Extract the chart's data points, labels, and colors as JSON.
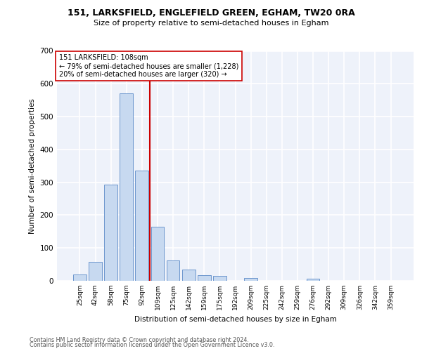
{
  "title1": "151, LARKSFIELD, ENGLEFIELD GREEN, EGHAM, TW20 0RA",
  "title2": "Size of property relative to semi-detached houses in Egham",
  "xlabel": "Distribution of semi-detached houses by size in Egham",
  "ylabel": "Number of semi-detached properties",
  "categories": [
    "25sqm",
    "42sqm",
    "58sqm",
    "75sqm",
    "92sqm",
    "109sqm",
    "125sqm",
    "142sqm",
    "159sqm",
    "175sqm",
    "192sqm",
    "209sqm",
    "225sqm",
    "242sqm",
    "259sqm",
    "276sqm",
    "292sqm",
    "309sqm",
    "326sqm",
    "342sqm",
    "359sqm"
  ],
  "values": [
    20,
    57,
    293,
    570,
    335,
    165,
    63,
    35,
    17,
    16,
    0,
    8,
    0,
    0,
    0,
    7,
    0,
    0,
    0,
    0,
    0
  ],
  "bar_color": "#c7d9f0",
  "bar_edge_color": "#5b8ac7",
  "property_label": "151 LARKSFIELD: 108sqm",
  "annotation_line1": "← 79% of semi-detached houses are smaller (1,228)",
  "annotation_line2": "20% of semi-detached houses are larger (320) →",
  "vline_color": "#cc0000",
  "vline_x": 4.5,
  "ylim": [
    0,
    700
  ],
  "yticks": [
    0,
    100,
    200,
    300,
    400,
    500,
    600,
    700
  ],
  "bg_color": "#eef2fa",
  "grid_color": "#ffffff",
  "footer1": "Contains HM Land Registry data © Crown copyright and database right 2024.",
  "footer2": "Contains public sector information licensed under the Open Government Licence v3.0."
}
